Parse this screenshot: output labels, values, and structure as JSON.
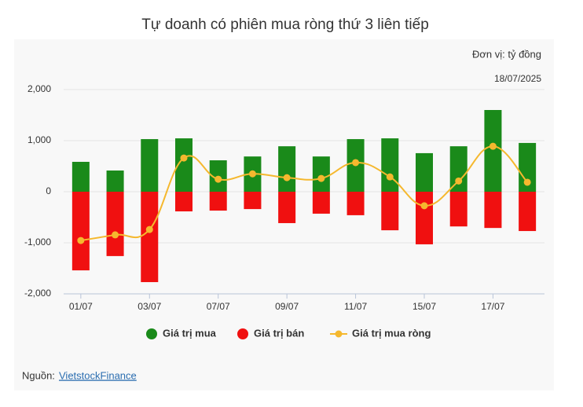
{
  "chart_data": {
    "type": "bar",
    "title": "Tự doanh có phiên mua ròng thứ 3 liên tiếp",
    "unit_note": "Đơn vị: tỷ đồng",
    "date_note": "18/07/2025",
    "categories": [
      "01/07",
      null,
      "03/07",
      null,
      "07/07",
      null,
      "09/07",
      null,
      "11/07",
      null,
      "15/07",
      null,
      "17/07",
      null
    ],
    "series": [
      {
        "name": "Giá trị mua",
        "color": "#1a8a1a",
        "type": "bar",
        "values": [
          585,
          415,
          1030,
          1045,
          615,
          690,
          890,
          690,
          1030,
          1045,
          755,
          890,
          1600,
          955
        ]
      },
      {
        "name": "Giá trị bán",
        "color": "#f01010",
        "type": "bar",
        "values": [
          -1540,
          -1260,
          -1770,
          -385,
          -370,
          -340,
          -615,
          -430,
          -460,
          -755,
          -1030,
          -680,
          -710,
          -770
        ]
      },
      {
        "name": "Giá trị mua ròng",
        "color": "#f5b82e",
        "type": "line",
        "values": [
          -955,
          -845,
          -740,
          660,
          245,
          350,
          275,
          260,
          570,
          290,
          -275,
          210,
          890,
          185
        ]
      }
    ],
    "ylim": [
      -2000,
      2000
    ],
    "yticks": [
      {
        "value": -2000,
        "label": "-2,000"
      },
      {
        "value": -1000,
        "label": "-1,000"
      },
      0,
      {
        "value": 1000,
        "label": "1,000"
      },
      {
        "value": 2000,
        "label": "2,000"
      }
    ],
    "grid": true,
    "source_label": "Nguồn:",
    "source_link": "VietstockFinance"
  }
}
